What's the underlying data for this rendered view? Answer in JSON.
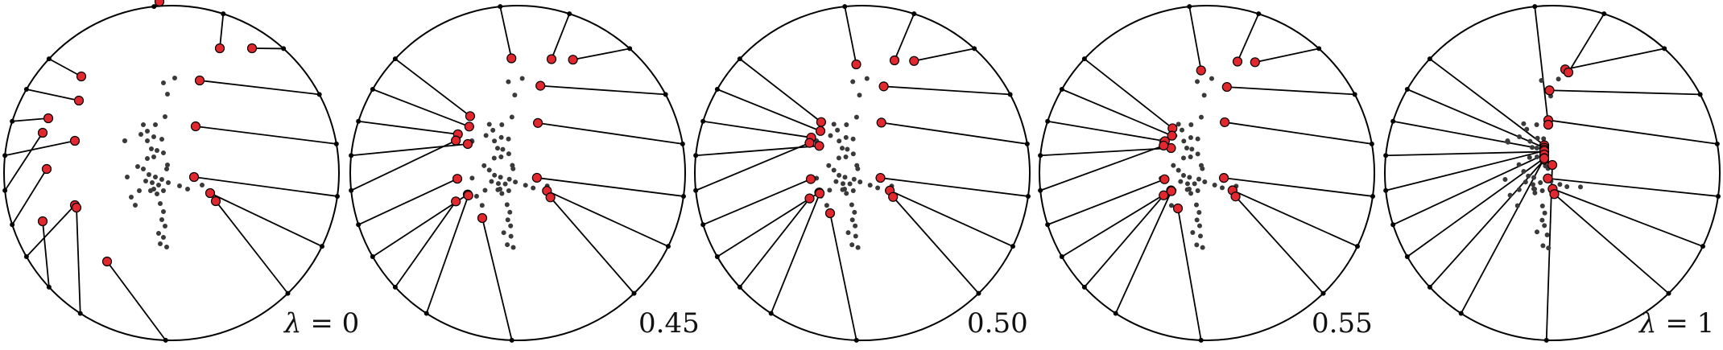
{
  "colors": {
    "background": "#ffffff",
    "line": "#000000",
    "anchor": "#000000",
    "red_marker": "#e0282e",
    "gray_dot": "#3a3a3a"
  },
  "panels": [
    {
      "label_prefix": "λ",
      "label_sep": " = ",
      "label_value": "0"
    },
    {
      "label_prefix": "",
      "label_sep": "",
      "label_value": "0.45"
    },
    {
      "label_prefix": "",
      "label_sep": "",
      "label_value": "0.50"
    },
    {
      "label_prefix": "",
      "label_sep": "",
      "label_value": "0.55"
    },
    {
      "label_prefix": "λ",
      "label_sep": " = ",
      "label_value": "1"
    }
  ]
}
